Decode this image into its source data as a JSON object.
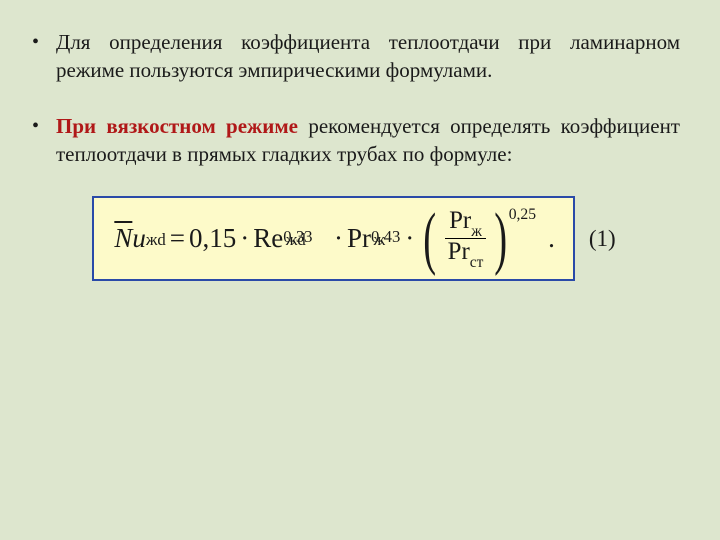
{
  "bullets": {
    "b1": {
      "marker": "•",
      "text": "Для определения коэффициента теплоотдачи при ламинарном режиме пользуются эмпирическими формулами."
    },
    "b2": {
      "marker": "•",
      "emph": "При вязкостном режиме",
      "rest": " рекомендуется определять коэффициент теплоотдачи в прямых гладких трубах по формуле:"
    }
  },
  "formula": {
    "lhs_bar": "N",
    "lhs_u": "u",
    "lhs_sub": "жd",
    "eq": "=",
    "coef": "0,15",
    "term1_base": "Re",
    "term1_sub": "жd",
    "term1_sup": "0,33",
    "term2_base": "Pr",
    "term2_sub": "ж",
    "term2_sup": "0,43",
    "frac_num_base": "Pr",
    "frac_num_sub": "ж",
    "frac_den_base": "Pr",
    "frac_den_sub": "ст",
    "outer_sup": "0,25",
    "dot": "·",
    "trail": "."
  },
  "eq_number": "(1)",
  "colors": {
    "background": "#dde6ce",
    "formula_bg": "#fdfac9",
    "formula_border": "#2a4aa8",
    "emph": "#b01818"
  }
}
